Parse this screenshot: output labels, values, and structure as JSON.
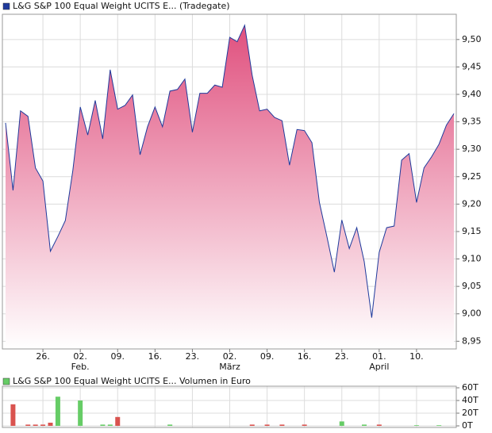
{
  "chart_data": [
    {
      "type": "area",
      "title": "L&G S&P 100 Equal Weight UCITS E...",
      "subtitle": "(Tradegate)",
      "categories": [
        null,
        null,
        null,
        null,
        null,
        "26.",
        null,
        null,
        null,
        null,
        "02.",
        null,
        null,
        null,
        null,
        "09.",
        null,
        null,
        null,
        null,
        "16.",
        null,
        null,
        null,
        null,
        "23.",
        null,
        null,
        null,
        null,
        "02.",
        null,
        null,
        null,
        null,
        "09.",
        null,
        null,
        null,
        null,
        "16.",
        null,
        null,
        null,
        null,
        "23.",
        null,
        null,
        null,
        null,
        "01.",
        null,
        null,
        null,
        null,
        "10.",
        null,
        null,
        null,
        null,
        null
      ],
      "category_groups": [
        null,
        null,
        null,
        null,
        null,
        null,
        null,
        null,
        null,
        null,
        "Feb.",
        null,
        null,
        null,
        null,
        null,
        null,
        null,
        null,
        null,
        null,
        null,
        null,
        null,
        null,
        null,
        null,
        null,
        null,
        null,
        "März",
        null,
        null,
        null,
        null,
        null,
        null,
        null,
        null,
        null,
        null,
        null,
        null,
        null,
        null,
        null,
        null,
        null,
        null,
        null,
        "April",
        null,
        null,
        null,
        null,
        null,
        null,
        null,
        null,
        null,
        null
      ],
      "values": [
        9.348,
        9.225,
        9.37,
        9.36,
        9.266,
        9.242,
        9.114,
        9.141,
        9.17,
        9.261,
        9.377,
        9.326,
        9.389,
        9.319,
        9.445,
        9.373,
        9.38,
        9.399,
        9.29,
        9.341,
        9.377,
        9.341,
        9.406,
        9.409,
        9.428,
        9.331,
        9.402,
        9.402,
        9.417,
        9.413,
        9.504,
        9.496,
        9.526,
        9.435,
        9.37,
        9.373,
        9.358,
        9.352,
        9.271,
        9.336,
        9.334,
        9.312,
        9.203,
        9.141,
        9.076,
        9.171,
        9.119,
        9.157,
        9.095,
        8.993,
        9.112,
        9.157,
        9.16,
        9.28,
        9.292,
        9.203,
        9.266,
        9.286,
        9.309,
        9.344,
        9.365
      ],
      "color": "#1f3a9c",
      "fill_color": "#e0507e",
      "ylim": [
        8.936,
        9.546
      ],
      "yticks": [
        {
          "value": 8.95,
          "label": "8,95"
        },
        {
          "value": 9.0,
          "label": "9,00"
        },
        {
          "value": 9.05,
          "label": "9,05"
        },
        {
          "value": 9.1,
          "label": "9,10"
        },
        {
          "value": 9.15,
          "label": "9,15"
        },
        {
          "value": 9.2,
          "label": "9,20"
        },
        {
          "value": 9.25,
          "label": "9,25"
        },
        {
          "value": 9.3,
          "label": "9,30"
        },
        {
          "value": 9.35,
          "label": "9,35"
        },
        {
          "value": 9.4,
          "label": "9,40"
        },
        {
          "value": 9.45,
          "label": "9,45"
        },
        {
          "value": 9.5,
          "label": "9,50"
        }
      ],
      "grid": true
    },
    {
      "type": "bar",
      "title": "L&G S&P 100 Equal Weight UCITS E...",
      "subtitle": "Volumen in Euro",
      "legend_color": "#66cc66",
      "values": [
        0,
        34,
        0,
        2,
        2,
        2,
        5,
        46,
        0,
        0,
        40,
        0,
        0,
        2,
        2,
        14,
        0,
        0,
        0,
        0,
        0,
        0,
        2,
        0,
        0,
        0,
        0,
        0,
        0,
        0,
        0,
        0,
        0,
        2,
        0,
        2,
        0,
        2,
        0,
        0,
        2,
        0,
        0,
        0,
        0,
        7,
        0,
        0,
        2,
        0,
        2,
        0,
        0,
        0,
        0,
        1,
        0,
        0,
        1,
        0,
        0
      ],
      "colors": [
        "#d9534f",
        "#d9534f",
        "#d9534f",
        "#d9534f",
        "#d9534f",
        "#d9534f",
        "#d9534f",
        "#66cc66",
        "#d9534f",
        "#d9534f",
        "#66cc66",
        "#d9534f",
        "#d9534f",
        "#66cc66",
        "#66cc66",
        "#d9534f",
        "#d9534f",
        "#d9534f",
        "#d9534f",
        "#d9534f",
        "#d9534f",
        "#d9534f",
        "#66cc66",
        "#d9534f",
        "#d9534f",
        "#d9534f",
        "#d9534f",
        "#d9534f",
        "#d9534f",
        "#d9534f",
        "#d9534f",
        "#d9534f",
        "#d9534f",
        "#d9534f",
        "#d9534f",
        "#d9534f",
        "#d9534f",
        "#d9534f",
        "#d9534f",
        "#d9534f",
        "#d9534f",
        "#d9534f",
        "#d9534f",
        "#d9534f",
        "#d9534f",
        "#66cc66",
        "#d9534f",
        "#d9534f",
        "#66cc66",
        "#d9534f",
        "#d9534f",
        "#d9534f",
        "#d9534f",
        "#d9534f",
        "#d9534f",
        "#66cc66",
        "#d9534f",
        "#d9534f",
        "#66cc66",
        "#d9534f",
        "#d9534f"
      ],
      "ylim": [
        -2.5,
        62.5
      ],
      "yticks": [
        {
          "value": 0,
          "label": "0T"
        },
        {
          "value": 20,
          "label": "20T"
        },
        {
          "value": 40,
          "label": "40T"
        },
        {
          "value": 60,
          "label": "60T"
        }
      ],
      "grid": true
    }
  ]
}
